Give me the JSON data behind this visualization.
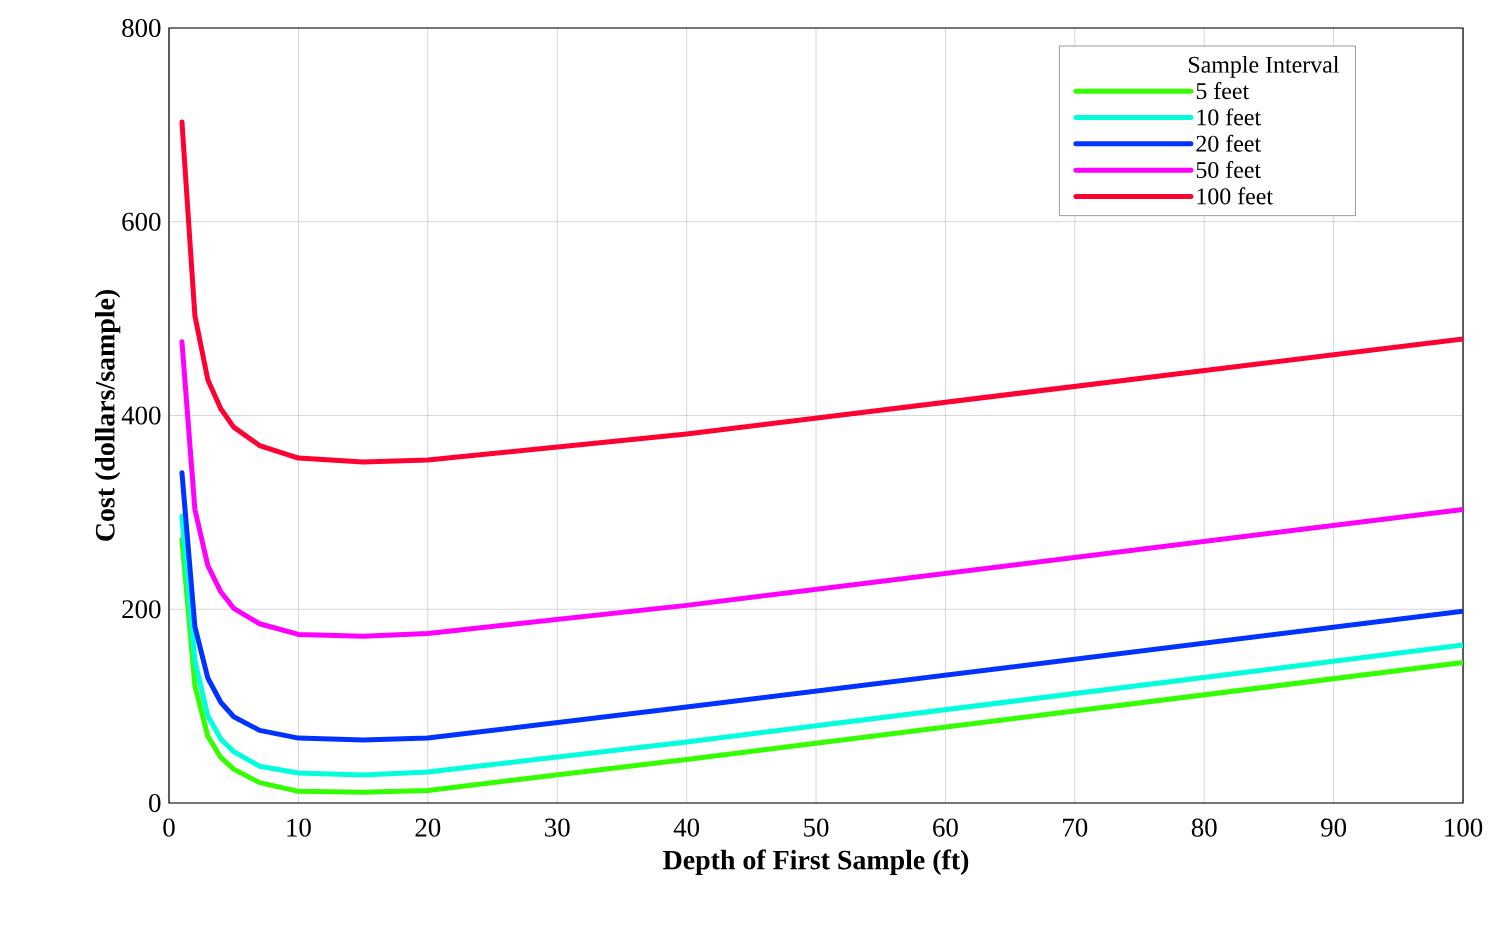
{
  "chart_data": {
    "type": "line",
    "xlabel": "Depth of First Sample (ft)",
    "ylabel": "Cost (dollars/sample)",
    "legend_title": "Sample Interval",
    "x": [
      1,
      2,
      3,
      4,
      5,
      7,
      10,
      15,
      20,
      40,
      100
    ],
    "series": [
      {
        "name": "5 feet",
        "color": "#33ff00",
        "values": [
          272,
          121,
          69,
          47,
          35,
          21,
          12,
          11,
          13,
          45,
          145
        ]
      },
      {
        "name": "10 feet",
        "color": "#00ffdd",
        "values": [
          296,
          147,
          90,
          66,
          53,
          38,
          31,
          29,
          32,
          63,
          163
        ]
      },
      {
        "name": "20 feet",
        "color": "#0033ff",
        "values": [
          341,
          182,
          129,
          104,
          89,
          75,
          67,
          65,
          67,
          99,
          198
        ]
      },
      {
        "name": "50 feet",
        "color": "#ff00ff",
        "values": [
          476,
          303,
          245,
          218,
          201,
          185,
          174,
          172,
          175,
          204,
          303
        ]
      },
      {
        "name": "100 feet",
        "color": "#ff0033",
        "values": [
          703,
          503,
          437,
          407,
          388,
          369,
          356,
          352,
          354,
          381,
          479
        ]
      }
    ],
    "xlim": [
      0,
      100
    ],
    "ylim": [
      0,
      800
    ],
    "xticks": [
      0,
      10,
      20,
      30,
      40,
      50,
      60,
      70,
      80,
      90,
      100
    ],
    "yticks": [
      0,
      200,
      400,
      600,
      800
    ],
    "grid": true,
    "legend": "top right",
    "marker": "none",
    "line_style": "solid"
  }
}
